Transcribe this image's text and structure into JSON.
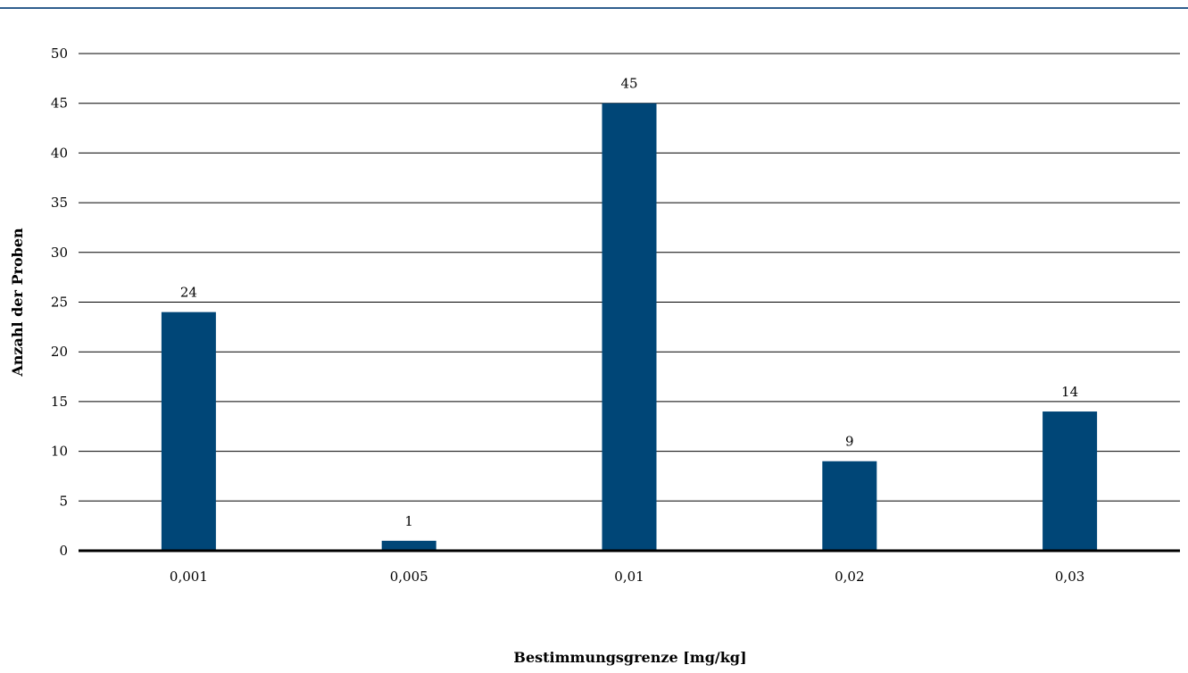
{
  "chart_data": {
    "type": "bar",
    "categories": [
      "0,001",
      "0,005",
      "0,01",
      "0,02",
      "0,03"
    ],
    "values": [
      24,
      1,
      45,
      9,
      14
    ],
    "data_labels": [
      "24",
      "1",
      "45",
      "9",
      "14"
    ],
    "xlabel": "Bestimmungsgrenze [mg/kg]",
    "ylabel": "Anzahl der Proben",
    "ylim": [
      0,
      50
    ],
    "yticks": [
      "0",
      "5",
      "10",
      "15",
      "20",
      "25",
      "30",
      "35",
      "40",
      "45",
      "50"
    ],
    "grid": true,
    "bar_color": "#004677",
    "rule_color": "#2f5e8e"
  }
}
